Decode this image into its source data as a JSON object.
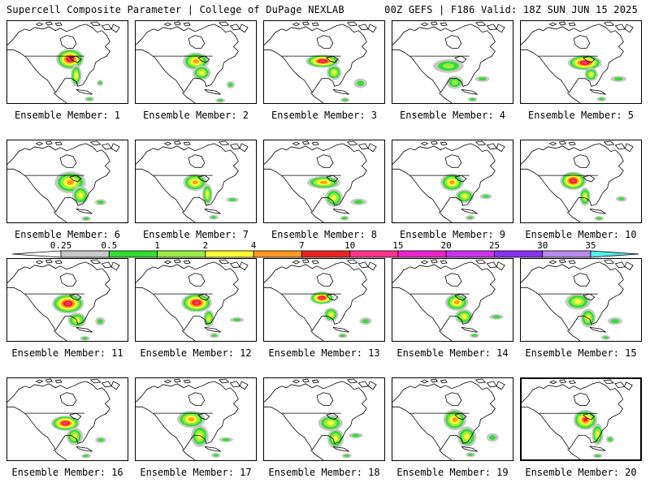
{
  "header": {
    "left": "Supercell Composite Parameter | College of DuPage NEXLAB",
    "right": "00Z GEFS | F186 Valid: 18Z SUN JUN 15 2025"
  },
  "member_label_prefix": "Ensemble Member: ",
  "members": [
    {
      "label": "Ensemble Member: 1",
      "number": 1,
      "scp_max": 10,
      "highlighted": false
    },
    {
      "label": "Ensemble Member: 2",
      "number": 2,
      "scp_max": 4,
      "highlighted": false
    },
    {
      "label": "Ensemble Member: 3",
      "number": 3,
      "scp_max": 10,
      "highlighted": false
    },
    {
      "label": "Ensemble Member: 4",
      "number": 4,
      "scp_max": 1,
      "highlighted": false
    },
    {
      "label": "Ensemble Member: 5",
      "number": 5,
      "scp_max": 10,
      "highlighted": false
    },
    {
      "label": "Ensemble Member: 6",
      "number": 6,
      "scp_max": 4,
      "highlighted": false
    },
    {
      "label": "Ensemble Member: 7",
      "number": 7,
      "scp_max": 4,
      "highlighted": false
    },
    {
      "label": "Ensemble Member: 8",
      "number": 8,
      "scp_max": 4,
      "highlighted": false
    },
    {
      "label": "Ensemble Member: 9",
      "number": 9,
      "scp_max": 4,
      "highlighted": false
    },
    {
      "label": "Ensemble Member: 10",
      "number": 10,
      "scp_max": 10,
      "highlighted": false
    },
    {
      "label": "Ensemble Member: 11",
      "number": 11,
      "scp_max": 10,
      "highlighted": false
    },
    {
      "label": "Ensemble Member: 12",
      "number": 12,
      "scp_max": 10,
      "highlighted": false
    },
    {
      "label": "Ensemble Member: 13",
      "number": 13,
      "scp_max": 10,
      "highlighted": false
    },
    {
      "label": "Ensemble Member: 14",
      "number": 14,
      "scp_max": 4,
      "highlighted": false
    },
    {
      "label": "Ensemble Member: 15",
      "number": 15,
      "scp_max": 2,
      "highlighted": false
    },
    {
      "label": "Ensemble Member: 16",
      "number": 16,
      "scp_max": 10,
      "highlighted": false
    },
    {
      "label": "Ensemble Member: 17",
      "number": 17,
      "scp_max": 4,
      "highlighted": false
    },
    {
      "label": "Ensemble Member: 18",
      "number": 18,
      "scp_max": 2,
      "highlighted": false
    },
    {
      "label": "Ensemble Member: 19",
      "number": 19,
      "scp_max": 4,
      "highlighted": false
    },
    {
      "label": "Ensemble Member: 20",
      "number": 20,
      "scp_max": 7,
      "highlighted": true
    }
  ],
  "colorbar": {
    "levels": [
      "0.25",
      "0.5",
      "1",
      "2",
      "4",
      "7",
      "10",
      "15",
      "20",
      "25",
      "30",
      "35"
    ],
    "colors": [
      "#c8c8c8",
      "#33dd33",
      "#99ee44",
      "#ffff33",
      "#ff9922",
      "#ee2222",
      "#ff3388",
      "#ee22cc",
      "#cc33ee",
      "#8833ee",
      "#bb88ee",
      "#55eeee"
    ],
    "arrow_low_color": "#ffffff"
  }
}
